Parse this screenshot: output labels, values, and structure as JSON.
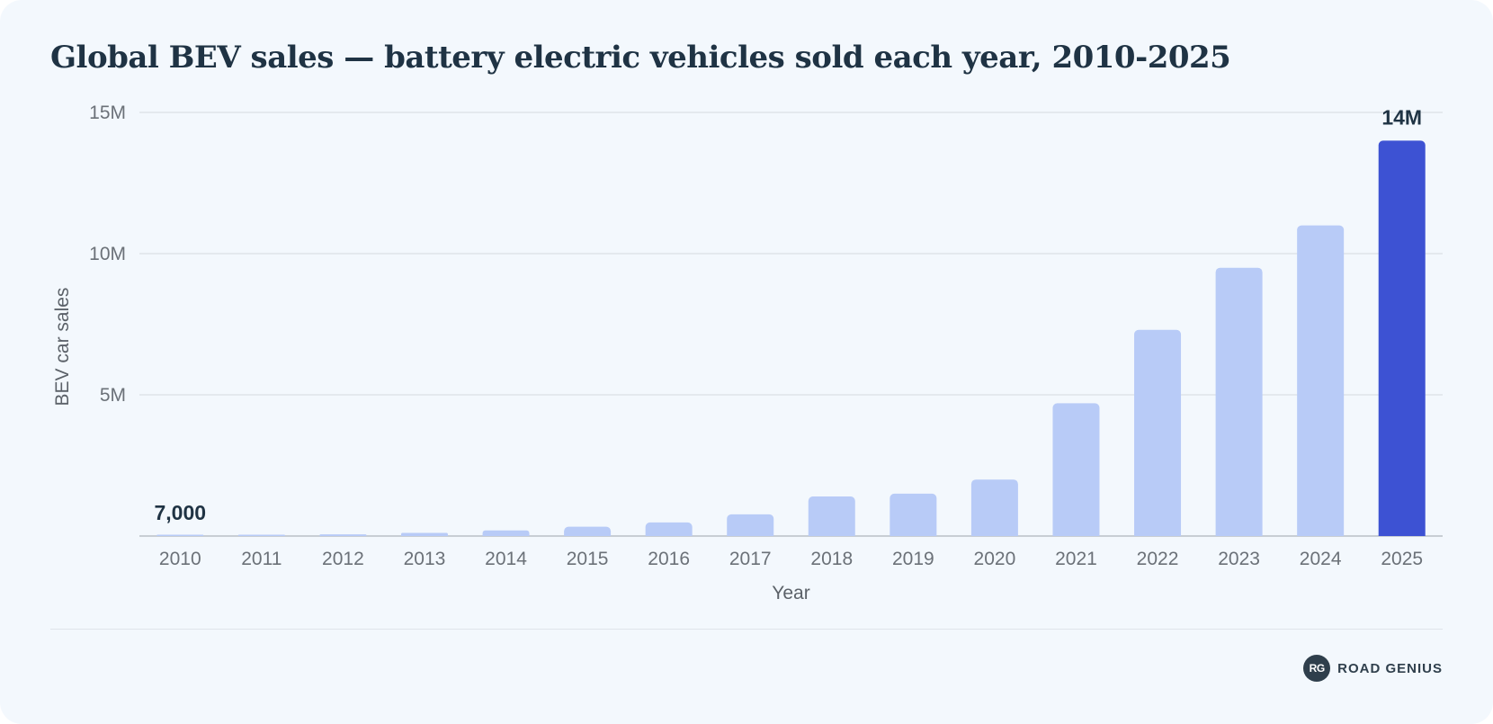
{
  "brand": {
    "badge": "RG",
    "name": "ROAD GENIUS"
  },
  "colors": {
    "bar": "#b8cbf7",
    "highlight_bar": "#3d52d3",
    "background": "#f3f8fd",
    "text": "#1f3344"
  },
  "chart_data": {
    "type": "bar",
    "title": "Global BEV sales — battery electric vehicles sold each year, 2010-2025",
    "xlabel": "Year",
    "ylabel": "BEV car sales",
    "categories": [
      "2010",
      "2011",
      "2012",
      "2013",
      "2014",
      "2015",
      "2016",
      "2017",
      "2018",
      "2019",
      "2020",
      "2021",
      "2022",
      "2023",
      "2024",
      "2025"
    ],
    "values": [
      7000,
      45000,
      60000,
      110000,
      200000,
      330000,
      480000,
      770000,
      1400000,
      1500000,
      2000000,
      4700000,
      7300000,
      9500000,
      11000000,
      14000000
    ],
    "ylim": [
      0,
      15000000
    ],
    "yticks": [
      {
        "value": 5000000,
        "label": "5M"
      },
      {
        "value": 10000000,
        "label": "10M"
      },
      {
        "value": 15000000,
        "label": "15M"
      }
    ],
    "grid": true,
    "legend": "none",
    "highlight_index": 15,
    "annotations": [
      {
        "index": 0,
        "label": "7,000"
      },
      {
        "index": 15,
        "label": "14M"
      }
    ]
  }
}
